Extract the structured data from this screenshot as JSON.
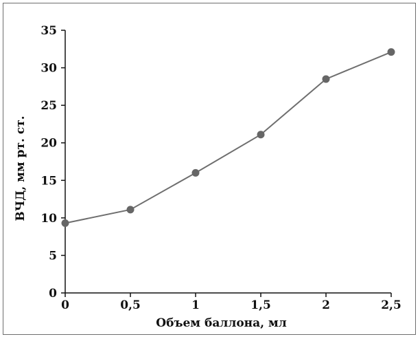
{
  "chart_data": {
    "type": "line",
    "title": "",
    "xlabel": "Объем баллона, мл",
    "ylabel": "ВЧД, мм рт. ст.",
    "x": [
      0,
      0.5,
      1,
      1.5,
      2,
      2.5
    ],
    "x_tick_labels": [
      "0",
      "0,5",
      "1",
      "1,5",
      "2",
      "2,5"
    ],
    "y_ticks": [
      0,
      5,
      10,
      15,
      20,
      25,
      30,
      35
    ],
    "y_tick_labels": [
      "0",
      "5",
      "10",
      "15",
      "20",
      "25",
      "30",
      "35"
    ],
    "xlim": [
      0,
      2.5
    ],
    "ylim": [
      0,
      35
    ],
    "grid": false,
    "series": [
      {
        "values": [
          9.3,
          11.1,
          16.0,
          21.1,
          28.5,
          32.1
        ]
      }
    ],
    "colors": {
      "line": "#6e6e6e",
      "marker": "#666666",
      "axis": "#111111"
    }
  }
}
